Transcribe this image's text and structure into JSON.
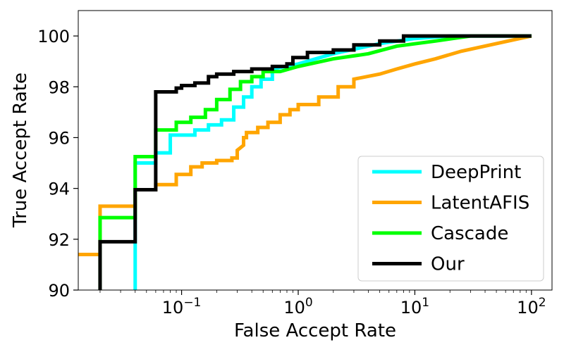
{
  "chart_data": {
    "type": "line",
    "title": "",
    "xlabel": "False Accept Rate",
    "ylabel": "True Accept Rate",
    "xscale": "log",
    "xlim": [
      0.013,
      150
    ],
    "ylim": [
      90,
      101
    ],
    "x_ticks": [
      {
        "value": 0.1,
        "base": "10",
        "exp": "−1"
      },
      {
        "value": 1,
        "base": "10",
        "exp": "0"
      },
      {
        "value": 10,
        "base": "10",
        "exp": "1"
      },
      {
        "value": 100,
        "base": "10",
        "exp": "2"
      }
    ],
    "y_ticks": [
      {
        "value": 90,
        "label": "90"
      },
      {
        "value": 92,
        "label": "92"
      },
      {
        "value": 94,
        "label": "94"
      },
      {
        "value": 96,
        "label": "96"
      },
      {
        "value": 98,
        "label": "98"
      },
      {
        "value": 100,
        "label": "100"
      }
    ],
    "legend_position": "lower-right",
    "series": [
      {
        "name": "DeepPrint",
        "color": "#00FFFF",
        "points": [
          [
            0.04,
            90
          ],
          [
            0.04,
            95
          ],
          [
            0.06,
            95
          ],
          [
            0.06,
            95.4
          ],
          [
            0.08,
            95.4
          ],
          [
            0.08,
            96.1
          ],
          [
            0.13,
            96.1
          ],
          [
            0.13,
            96.3
          ],
          [
            0.17,
            96.3
          ],
          [
            0.17,
            96.5
          ],
          [
            0.22,
            96.5
          ],
          [
            0.22,
            96.7
          ],
          [
            0.28,
            96.7
          ],
          [
            0.28,
            97.2
          ],
          [
            0.34,
            97.2
          ],
          [
            0.34,
            97.6
          ],
          [
            0.4,
            97.6
          ],
          [
            0.4,
            98.0
          ],
          [
            0.48,
            98.0
          ],
          [
            0.48,
            98.3
          ],
          [
            0.6,
            98.3
          ],
          [
            0.6,
            98.7
          ],
          [
            1,
            98.9
          ],
          [
            2,
            99.3
          ],
          [
            5,
            99.7
          ],
          [
            10,
            99.9
          ],
          [
            20,
            100
          ],
          [
            100,
            100
          ]
        ]
      },
      {
        "name": "LatentAFIS",
        "color": "#FFA500",
        "points": [
          [
            0.013,
            91.4
          ],
          [
            0.02,
            91.4
          ],
          [
            0.02,
            93.3
          ],
          [
            0.04,
            93.3
          ],
          [
            0.04,
            93.95
          ],
          [
            0.06,
            93.95
          ],
          [
            0.06,
            94.15
          ],
          [
            0.09,
            94.15
          ],
          [
            0.09,
            94.55
          ],
          [
            0.12,
            94.55
          ],
          [
            0.12,
            94.85
          ],
          [
            0.15,
            94.85
          ],
          [
            0.15,
            95.0
          ],
          [
            0.2,
            95.0
          ],
          [
            0.2,
            95.1
          ],
          [
            0.27,
            95.1
          ],
          [
            0.27,
            95.2
          ],
          [
            0.3,
            95.2
          ],
          [
            0.3,
            95.5
          ],
          [
            0.34,
            95.7
          ],
          [
            0.34,
            96.0
          ],
          [
            0.36,
            96.0
          ],
          [
            0.36,
            96.2
          ],
          [
            0.45,
            96.2
          ],
          [
            0.45,
            96.4
          ],
          [
            0.55,
            96.4
          ],
          [
            0.55,
            96.6
          ],
          [
            0.7,
            96.6
          ],
          [
            0.7,
            96.9
          ],
          [
            0.85,
            96.9
          ],
          [
            0.85,
            97.1
          ],
          [
            1.0,
            97.1
          ],
          [
            1.0,
            97.3
          ],
          [
            1.5,
            97.3
          ],
          [
            1.5,
            97.6
          ],
          [
            2.2,
            97.6
          ],
          [
            2.2,
            98.0
          ],
          [
            3.0,
            98.0
          ],
          [
            3.0,
            98.3
          ],
          [
            5.0,
            98.5
          ],
          [
            7.0,
            98.7
          ],
          [
            10.0,
            98.9
          ],
          [
            15.0,
            99.1
          ],
          [
            25.0,
            99.4
          ],
          [
            50.0,
            99.7
          ],
          [
            100,
            100
          ]
        ]
      },
      {
        "name": "Cascade",
        "color": "#00FF00",
        "points": [
          [
            0.02,
            90
          ],
          [
            0.02,
            92.1
          ],
          [
            0.02,
            92.85
          ],
          [
            0.04,
            92.85
          ],
          [
            0.04,
            95.25
          ],
          [
            0.06,
            95.25
          ],
          [
            0.06,
            96.3
          ],
          [
            0.09,
            96.3
          ],
          [
            0.09,
            96.6
          ],
          [
            0.12,
            96.6
          ],
          [
            0.12,
            96.8
          ],
          [
            0.16,
            96.8
          ],
          [
            0.16,
            97.1
          ],
          [
            0.2,
            97.1
          ],
          [
            0.2,
            97.5
          ],
          [
            0.26,
            97.5
          ],
          [
            0.26,
            97.9
          ],
          [
            0.32,
            97.9
          ],
          [
            0.32,
            98.2
          ],
          [
            0.4,
            98.2
          ],
          [
            0.4,
            98.4
          ],
          [
            0.5,
            98.4
          ],
          [
            0.5,
            98.6
          ],
          [
            0.7,
            98.6
          ],
          [
            1.0,
            98.8
          ],
          [
            2.0,
            99.1
          ],
          [
            4.0,
            99.3
          ],
          [
            7.0,
            99.6
          ],
          [
            15.0,
            99.8
          ],
          [
            30.0,
            100
          ],
          [
            100,
            100
          ]
        ]
      },
      {
        "name": "Our",
        "color": "#000000",
        "points": [
          [
            0.02,
            90
          ],
          [
            0.02,
            91.9
          ],
          [
            0.04,
            91.9
          ],
          [
            0.04,
            93.95
          ],
          [
            0.06,
            93.95
          ],
          [
            0.06,
            97.8
          ],
          [
            0.09,
            97.8
          ],
          [
            0.09,
            97.95
          ],
          [
            0.1,
            97.95
          ],
          [
            0.1,
            98.05
          ],
          [
            0.13,
            98.05
          ],
          [
            0.13,
            98.15
          ],
          [
            0.17,
            98.15
          ],
          [
            0.17,
            98.4
          ],
          [
            0.2,
            98.4
          ],
          [
            0.2,
            98.5
          ],
          [
            0.28,
            98.5
          ],
          [
            0.28,
            98.6
          ],
          [
            0.4,
            98.6
          ],
          [
            0.4,
            98.7
          ],
          [
            0.6,
            98.7
          ],
          [
            0.6,
            98.8
          ],
          [
            0.8,
            98.8
          ],
          [
            0.8,
            98.9
          ],
          [
            0.9,
            98.9
          ],
          [
            0.9,
            99.15
          ],
          [
            1.2,
            99.15
          ],
          [
            1.2,
            99.35
          ],
          [
            2.0,
            99.35
          ],
          [
            2.0,
            99.45
          ],
          [
            3.0,
            99.45
          ],
          [
            3.0,
            99.65
          ],
          [
            5.0,
            99.65
          ],
          [
            5.0,
            99.8
          ],
          [
            8.0,
            99.8
          ],
          [
            8.0,
            100
          ],
          [
            100,
            100
          ]
        ]
      }
    ]
  }
}
